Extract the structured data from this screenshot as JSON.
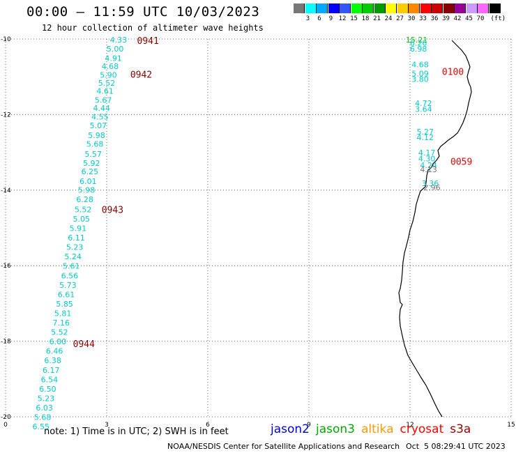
{
  "header": {
    "title": "00:00 — 11:59 UTC 10/03/2023",
    "subtitle": "12 hour collection of altimeter wave heights"
  },
  "legend": {
    "unit": "(ft)",
    "labels": [
      "3",
      "6",
      "9",
      "12",
      "15",
      "18",
      "21",
      "24",
      "27",
      "30",
      "33",
      "36",
      "39",
      "42",
      "45",
      "70"
    ],
    "colors": [
      "#777777",
      "#00ffff",
      "#00aaff",
      "#0000ff",
      "#3355ff",
      "#00ff00",
      "#00cc00",
      "#009900",
      "#ffff00",
      "#ffcc00",
      "#ff8800",
      "#ff0000",
      "#cc0000",
      "#880000",
      "#990099",
      "#cc99ff",
      "#ff66ff",
      "#000000"
    ]
  },
  "chart_data": {
    "type": "map",
    "axes": {
      "x_ticks": [
        "0",
        "3",
        "6",
        "9",
        "12",
        "15"
      ],
      "y_ticks": [
        "-10",
        "-12",
        "-14",
        "-16",
        "-18",
        "-20"
      ],
      "xlim": [
        0,
        15
      ],
      "ylim": [
        -20,
        -10
      ],
      "grid": "dotted"
    },
    "tracks": [
      {
        "time_labels": [
          {
            "label": "0941",
            "lat": -10.04,
            "lon": 3.9
          },
          {
            "label": "0942",
            "lat": -10.93,
            "lon": 3.7
          },
          {
            "label": "0943",
            "lat": -14.51,
            "lon": 2.85
          },
          {
            "label": "0944",
            "lat": -18.06,
            "lon": 2.0
          }
        ],
        "points": [
          {
            "lat": -10.02,
            "lon": 3.35,
            "swh": "4.33"
          },
          {
            "lat": -10.26,
            "lon": 3.25,
            "swh": "5.00"
          },
          {
            "lat": -10.51,
            "lon": 3.2,
            "swh": "4.91"
          },
          {
            "lat": -10.72,
            "lon": 3.1,
            "swh": "4.68"
          },
          {
            "lat": -10.95,
            "lon": 3.05,
            "swh": "5.90"
          },
          {
            "lat": -11.16,
            "lon": 3.0,
            "swh": "5.52"
          },
          {
            "lat": -11.37,
            "lon": 2.95,
            "swh": "4.61"
          },
          {
            "lat": -11.61,
            "lon": 2.9,
            "swh": "5.67"
          },
          {
            "lat": -11.83,
            "lon": 2.85,
            "swh": "4.44"
          },
          {
            "lat": -12.06,
            "lon": 2.8,
            "swh": "4.55"
          },
          {
            "lat": -12.29,
            "lon": 2.75,
            "swh": "5.07"
          },
          {
            "lat": -12.55,
            "lon": 2.7,
            "swh": "5.98"
          },
          {
            "lat": -12.78,
            "lon": 2.65,
            "swh": "5.68"
          },
          {
            "lat": -13.04,
            "lon": 2.6,
            "swh": "5.57"
          },
          {
            "lat": -13.28,
            "lon": 2.55,
            "swh": "5.92"
          },
          {
            "lat": -13.51,
            "lon": 2.5,
            "swh": "6.25"
          },
          {
            "lat": -13.76,
            "lon": 2.45,
            "swh": "6.01"
          },
          {
            "lat": -13.99,
            "lon": 2.4,
            "swh": "5.98"
          },
          {
            "lat": -14.24,
            "lon": 2.35,
            "swh": "6.28"
          },
          {
            "lat": -14.51,
            "lon": 2.3,
            "swh": "5.52"
          },
          {
            "lat": -14.76,
            "lon": 2.25,
            "swh": "5.05"
          },
          {
            "lat": -15.01,
            "lon": 2.15,
            "swh": "5.91"
          },
          {
            "lat": -15.26,
            "lon": 2.1,
            "swh": "6.11"
          },
          {
            "lat": -15.51,
            "lon": 2.05,
            "swh": "5.23"
          },
          {
            "lat": -15.76,
            "lon": 2.0,
            "swh": "5.24"
          },
          {
            "lat": -16.01,
            "lon": 1.95,
            "swh": "5.61"
          },
          {
            "lat": -16.26,
            "lon": 1.9,
            "swh": "6.56"
          },
          {
            "lat": -16.51,
            "lon": 1.85,
            "swh": "5.73"
          },
          {
            "lat": -16.76,
            "lon": 1.8,
            "swh": "6.61"
          },
          {
            "lat": -17.01,
            "lon": 1.75,
            "swh": "5.85"
          },
          {
            "lat": -17.26,
            "lon": 1.7,
            "swh": "5.81"
          },
          {
            "lat": -17.51,
            "lon": 1.65,
            "swh": "7.16"
          },
          {
            "lat": -17.76,
            "lon": 1.6,
            "swh": "5.52"
          },
          {
            "lat": -18.01,
            "lon": 1.55,
            "swh": "6.00"
          },
          {
            "lat": -18.26,
            "lon": 1.45,
            "swh": "6.46"
          },
          {
            "lat": -18.51,
            "lon": 1.4,
            "swh": "6.38"
          },
          {
            "lat": -18.76,
            "lon": 1.35,
            "swh": "6.17"
          },
          {
            "lat": -19.01,
            "lon": 1.3,
            "swh": "6.54"
          },
          {
            "lat": -19.26,
            "lon": 1.25,
            "swh": "6.50"
          },
          {
            "lat": -19.51,
            "lon": 1.2,
            "swh": "5.23"
          },
          {
            "lat": -19.76,
            "lon": 1.15,
            "swh": "6.03"
          },
          {
            "lat": -20.01,
            "lon": 1.1,
            "swh": "5.68"
          },
          {
            "lat": -20.26,
            "lon": 1.05,
            "swh": "6.55"
          }
        ]
      },
      {
        "time_labels": [
          {
            "label": "0100",
            "lat": -10.86,
            "lon": 12.95
          },
          {
            "label": "0059",
            "lat": -13.24,
            "lon": 13.2
          }
        ],
        "points": [
          {
            "lat": -10.02,
            "lon": 12.2,
            "swh": "15.21",
            "color": "#00cc00"
          },
          {
            "lat": -10.1,
            "lon": 12.25,
            "swh": "6.26"
          },
          {
            "lat": -10.26,
            "lon": 12.25,
            "swh": "6.98"
          },
          {
            "lat": -10.67,
            "lon": 12.3,
            "swh": "4.68"
          },
          {
            "lat": -10.91,
            "lon": 12.3,
            "swh": "5.09"
          },
          {
            "lat": -11.06,
            "lon": 12.3,
            "swh": "3.80"
          },
          {
            "lat": -11.7,
            "lon": 12.4,
            "swh": "4.72"
          },
          {
            "lat": -11.85,
            "lon": 12.4,
            "swh": "3.64"
          },
          {
            "lat": -12.45,
            "lon": 12.45,
            "swh": "5.27"
          },
          {
            "lat": -12.6,
            "lon": 12.45,
            "swh": "4.12"
          },
          {
            "lat": -13.01,
            "lon": 12.5,
            "swh": "4.17"
          },
          {
            "lat": -13.16,
            "lon": 12.5,
            "swh": "4.30"
          },
          {
            "lat": -13.34,
            "lon": 12.55,
            "swh": "4.24"
          },
          {
            "lat": -13.45,
            "lon": 12.55,
            "swh": "4.13",
            "color": "#777777"
          },
          {
            "lat": -13.82,
            "lon": 12.6,
            "swh": "3.36"
          },
          {
            "lat": -13.93,
            "lon": 12.65,
            "swh": "2.96",
            "color": "#777777"
          }
        ]
      }
    ]
  },
  "footer": {
    "note": "note: 1) Time is in UTC; 2) SWH is in feet",
    "satellites": [
      {
        "name": "jason2",
        "color": "#0000dd"
      },
      {
        "name": "jason3",
        "color": "#00aa00"
      },
      {
        "name": "altika",
        "color": "#ff9900"
      },
      {
        "name": "cryosat",
        "color": "#ff0000"
      },
      {
        "name": "s3a",
        "color": "#990000"
      }
    ],
    "credit": "NOAA/NESDIS Center for Satellite Applications and Research",
    "timestamp": "Oct  5 08:29:41 UTC 2023"
  }
}
